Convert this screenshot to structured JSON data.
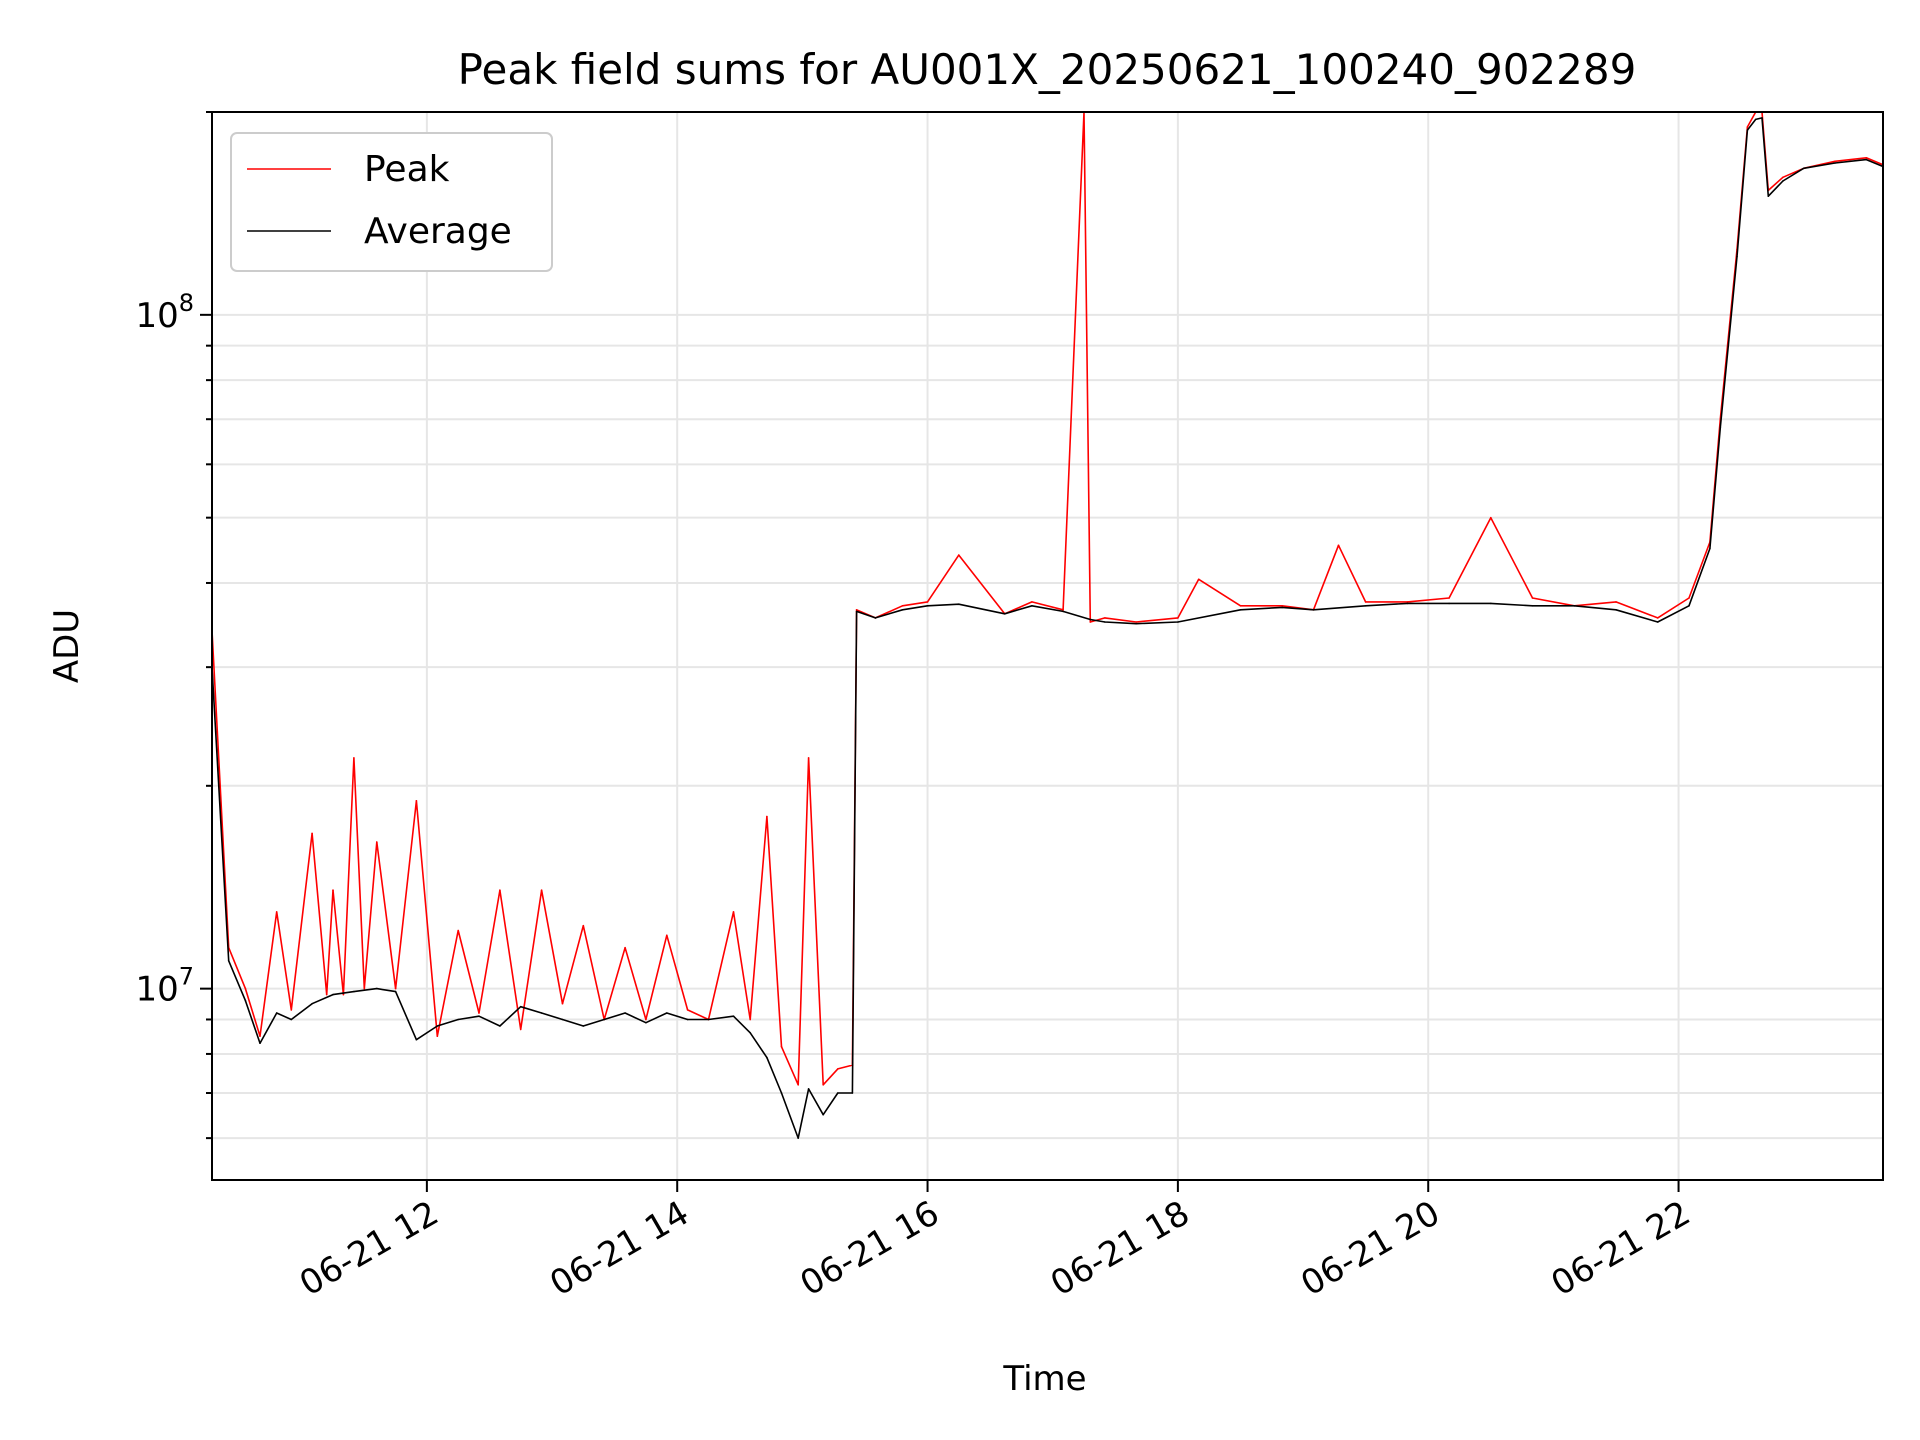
{
  "chart_data": {
    "type": "line",
    "title": "Peak field sums for AU001X_20250621_100240_902289",
    "xlabel": "Time",
    "ylabel": "ADU",
    "yscale": "log",
    "xlim": [
      "06-21 10:17",
      "06-21 23:38"
    ],
    "ylim": [
      5200000,
      200000000
    ],
    "grid": true,
    "legend_placement": "top-left",
    "x_tick_labels": [
      "06-21 12",
      "06-21 14",
      "06-21 16",
      "06-21 18",
      "06-21 20",
      "06-21 22"
    ],
    "y_tick_labels": [
      {
        "base": "10",
        "exp": "7"
      },
      {
        "base": "10",
        "exp": "8"
      }
    ],
    "series": [
      {
        "name": "Peak",
        "color": "#ff0000",
        "x": [
          "06-21 10:17",
          "06-21 10:25",
          "06-21 10:33",
          "06-21 10:40",
          "06-21 10:48",
          "06-21 10:55",
          "06-21 11:05",
          "06-21 11:12",
          "06-21 11:15",
          "06-21 11:20",
          "06-21 11:25",
          "06-21 11:30",
          "06-21 11:36",
          "06-21 11:45",
          "06-21 11:55",
          "06-21 12:05",
          "06-21 12:15",
          "06-21 12:25",
          "06-21 12:35",
          "06-21 12:45",
          "06-21 12:55",
          "06-21 13:05",
          "06-21 13:15",
          "06-21 13:25",
          "06-21 13:35",
          "06-21 13:45",
          "06-21 13:55",
          "06-21 14:05",
          "06-21 14:15",
          "06-21 14:27",
          "06-21 14:35",
          "06-21 14:43",
          "06-21 14:50",
          "06-21 14:58",
          "06-21 15:03",
          "06-21 15:10",
          "06-21 15:17",
          "06-21 15:24",
          "06-21 15:26",
          "06-21 15:35",
          "06-21 15:48",
          "06-21 16:00",
          "06-21 16:15",
          "06-21 16:37",
          "06-21 16:50",
          "06-21 17:05",
          "06-21 17:15",
          "06-21 17:18",
          "06-21 17:25",
          "06-21 17:40",
          "06-21 18:00",
          "06-21 18:10",
          "06-21 18:30",
          "06-21 18:50",
          "06-21 19:05",
          "06-21 19:17",
          "06-21 19:30",
          "06-21 19:50",
          "06-21 20:10",
          "06-21 20:30",
          "06-21 20:50",
          "06-21 21:10",
          "06-21 21:30",
          "06-21 21:50",
          "06-21 22:05",
          "06-21 22:15",
          "06-21 22:20",
          "06-21 22:28",
          "06-21 22:33",
          "06-21 22:37",
          "06-21 22:40",
          "06-21 22:43",
          "06-21 22:50",
          "06-21 23:00",
          "06-21 23:15",
          "06-21 23:30",
          "06-21 23:38"
        ],
        "values": [
          34000000,
          11500000,
          10000000,
          8500000,
          13000000,
          9300000,
          17000000,
          9800000,
          14000000,
          9800000,
          22000000,
          10000000,
          16500000,
          10000000,
          19000000,
          8500000,
          12200000,
          9200000,
          14000000,
          8700000,
          14000000,
          9500000,
          12400000,
          9000000,
          11500000,
          9000000,
          12000000,
          9300000,
          9000000,
          13000000,
          9000000,
          18000000,
          8200000,
          7200000,
          22000000,
          7200000,
          7600000,
          7700000,
          36500000,
          35500000,
          37000000,
          37500000,
          44000000,
          36000000,
          37500000,
          36500000,
          200000000,
          35000000,
          35500000,
          35000000,
          35500000,
          40500000,
          37000000,
          37000000,
          36500000,
          45500000,
          37500000,
          37500000,
          38000000,
          50000000,
          38000000,
          37000000,
          37500000,
          35500000,
          38000000,
          46000000,
          70000000,
          125000000,
          190000000,
          200000000,
          200000000,
          153000000,
          160000000,
          165000000,
          169000000,
          171000000,
          167000000
        ]
      },
      {
        "name": "Average",
        "color": "#000000",
        "x": [
          "06-21 10:17",
          "06-21 10:25",
          "06-21 10:33",
          "06-21 10:40",
          "06-21 10:48",
          "06-21 10:55",
          "06-21 11:05",
          "06-21 11:15",
          "06-21 11:25",
          "06-21 11:36",
          "06-21 11:45",
          "06-21 11:55",
          "06-21 12:05",
          "06-21 12:15",
          "06-21 12:25",
          "06-21 12:35",
          "06-21 12:45",
          "06-21 12:55",
          "06-21 13:05",
          "06-21 13:15",
          "06-21 13:25",
          "06-21 13:35",
          "06-21 13:45",
          "06-21 13:55",
          "06-21 14:05",
          "06-21 14:15",
          "06-21 14:27",
          "06-21 14:35",
          "06-21 14:43",
          "06-21 14:50",
          "06-21 14:58",
          "06-21 15:03",
          "06-21 15:10",
          "06-21 15:17",
          "06-21 15:24",
          "06-21 15:26",
          "06-21 15:35",
          "06-21 15:48",
          "06-21 16:00",
          "06-21 16:15",
          "06-21 16:37",
          "06-21 16:50",
          "06-21 17:05",
          "06-21 17:18",
          "06-21 17:25",
          "06-21 17:40",
          "06-21 18:00",
          "06-21 18:30",
          "06-21 18:50",
          "06-21 19:05",
          "06-21 19:30",
          "06-21 19:50",
          "06-21 20:10",
          "06-21 20:30",
          "06-21 20:50",
          "06-21 21:10",
          "06-21 21:30",
          "06-21 21:50",
          "06-21 22:05",
          "06-21 22:15",
          "06-21 22:20",
          "06-21 22:28",
          "06-21 22:33",
          "06-21 22:37",
          "06-21 22:40",
          "06-21 22:43",
          "06-21 22:50",
          "06-21 23:00",
          "06-21 23:15",
          "06-21 23:30",
          "06-21 23:38"
        ],
        "values": [
          30000000,
          11000000,
          9600000,
          8300000,
          9200000,
          9000000,
          9500000,
          9800000,
          9900000,
          10000000,
          9900000,
          8400000,
          8800000,
          9000000,
          9100000,
          8800000,
          9400000,
          9200000,
          9000000,
          8800000,
          9000000,
          9200000,
          8900000,
          9200000,
          9000000,
          9000000,
          9100000,
          8600000,
          7900000,
          7000000,
          6000000,
          7100000,
          6500000,
          7000000,
          7000000,
          36300000,
          35500000,
          36500000,
          37000000,
          37200000,
          36000000,
          37000000,
          36300000,
          35300000,
          35000000,
          34800000,
          35000000,
          36500000,
          36800000,
          36500000,
          37000000,
          37300000,
          37300000,
          37300000,
          37000000,
          37000000,
          36500000,
          35000000,
          37000000,
          45000000,
          68000000,
          122000000,
          188000000,
          195000000,
          196000000,
          150000000,
          158000000,
          165000000,
          168000000,
          170000000,
          166000000
        ]
      }
    ]
  }
}
